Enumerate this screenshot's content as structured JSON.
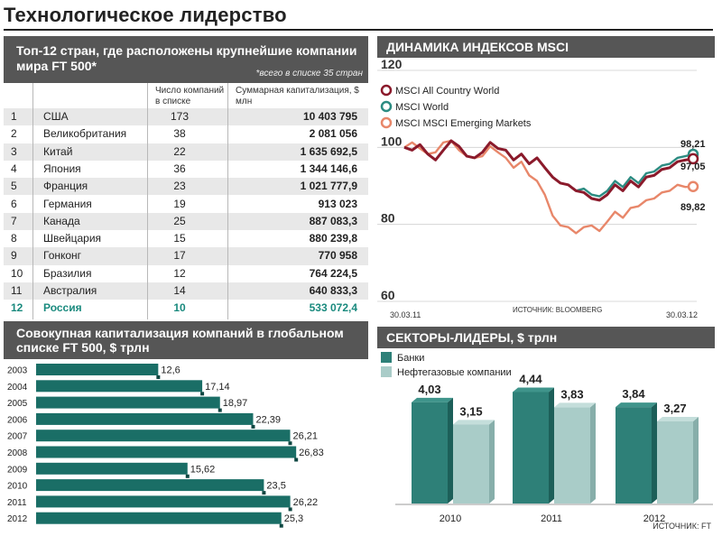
{
  "title": "Технологическое лидерство",
  "table": {
    "title": "Топ-12 стран, где расположены крупнейшие компании мира FT 500*",
    "note": "*всего в списке 35 стран",
    "col_count": "Число компаний в списке",
    "col_cap": "Суммарная капитализация, $ млн",
    "rows": [
      {
        "rank": "1",
        "country": "США",
        "count": "173",
        "cap": "10 403 795"
      },
      {
        "rank": "2",
        "country": "Великобритания",
        "count": "38",
        "cap": "2 081 056"
      },
      {
        "rank": "3",
        "country": "Китай",
        "count": "22",
        "cap": "1 635 692,5"
      },
      {
        "rank": "4",
        "country": "Япония",
        "count": "36",
        "cap": "1 344 146,6"
      },
      {
        "rank": "5",
        "country": "Франция",
        "count": "23",
        "cap": "1 021 777,9"
      },
      {
        "rank": "6",
        "country": "Германия",
        "count": "19",
        "cap": "913 023"
      },
      {
        "rank": "7",
        "country": "Канада",
        "count": "25",
        "cap": "887 083,3"
      },
      {
        "rank": "8",
        "country": "Швейцария",
        "count": "15",
        "cap": "880 239,8"
      },
      {
        "rank": "9",
        "country": "Гонконг",
        "count": "17",
        "cap": "770 958"
      },
      {
        "rank": "10",
        "country": "Бразилия",
        "count": "12",
        "cap": "764 224,5"
      },
      {
        "rank": "11",
        "country": "Австралия",
        "count": "14",
        "cap": "640 833,3"
      },
      {
        "rank": "12",
        "country": "Россия",
        "count": "10",
        "cap": "533 072,4"
      }
    ],
    "highlight_color": "#1a8a7e"
  },
  "chart_data": [
    {
      "type": "bar",
      "orientation": "horizontal",
      "title": "Совокупная капитализация компаний в глобальном списке FT 500, $ трлн",
      "categories": [
        "2003",
        "2004",
        "2005",
        "2006",
        "2007",
        "2008",
        "2009",
        "2010",
        "2011",
        "2012"
      ],
      "values": [
        12.6,
        17.14,
        18.97,
        22.39,
        26.21,
        26.83,
        15.62,
        23.5,
        26.22,
        25.3
      ],
      "labels": [
        "12,6",
        "17,14",
        "18,97",
        "22,39",
        "26,21",
        "26,83",
        "15,62",
        "23,5",
        "26,22",
        "25,3"
      ],
      "color": "#1a6e66"
    },
    {
      "type": "line",
      "title": "ДИНАМИКА ИНДЕКСОВ MSCI",
      "x_labels": [
        "30.03.11",
        "30.03.12"
      ],
      "ylim": [
        60,
        120
      ],
      "yticks": [
        60,
        80,
        100,
        120
      ],
      "source": "ИСТОЧНИК: BLOOMBERG",
      "series": [
        {
          "name": "MSCI All Country World",
          "color": "#8b1a2b",
          "end_label": "97,05",
          "values": [
            100,
            99,
            101,
            98,
            97,
            99,
            102,
            100,
            98,
            97,
            99,
            101,
            100,
            99,
            97,
            98,
            96,
            97,
            95,
            92,
            91,
            90,
            89,
            88,
            87,
            86,
            88,
            90,
            89,
            91,
            90,
            92,
            93,
            94,
            95,
            96,
            97,
            97.05
          ]
        },
        {
          "name": "MSCI World",
          "color": "#2c8c82",
          "end_label": "98,21",
          "values": [
            100,
            99,
            101,
            98,
            97,
            99,
            102,
            100,
            98,
            97,
            99,
            101,
            100,
            99,
            97,
            98,
            96,
            97,
            95,
            92,
            91,
            90,
            89,
            89,
            88,
            87,
            89,
            91,
            90,
            92,
            91,
            93,
            94,
            95,
            96,
            97,
            98,
            98.21
          ]
        },
        {
          "name": "MSCI MSCI Emerging Markets",
          "color": "#e8876a",
          "end_label": "89,82",
          "values": [
            100,
            101,
            100,
            98,
            99,
            101,
            102,
            99,
            98,
            97,
            98,
            100,
            99,
            97,
            95,
            96,
            93,
            91,
            88,
            82,
            80,
            79,
            78,
            79,
            80,
            78,
            81,
            83,
            82,
            84,
            85,
            86,
            87,
            88,
            89,
            90,
            90,
            89.82
          ]
        }
      ]
    },
    {
      "type": "bar",
      "title": "СЕКТОРЫ-ЛИДЕРЫ, $ трлн",
      "categories": [
        "2010",
        "2011",
        "2012"
      ],
      "series": [
        {
          "name": "Банки",
          "color": "#2e8078",
          "values": [
            4.03,
            4.44,
            3.84
          ],
          "labels": [
            "4,03",
            "4,44",
            "3,84"
          ]
        },
        {
          "name": "Нефтегазовые компании",
          "color": "#a9ccc8",
          "values": [
            3.15,
            3.83,
            3.27
          ],
          "labels": [
            "3,15",
            "3,83",
            "3,27"
          ]
        }
      ],
      "source": "ИСТОЧНИК: FT"
    }
  ]
}
